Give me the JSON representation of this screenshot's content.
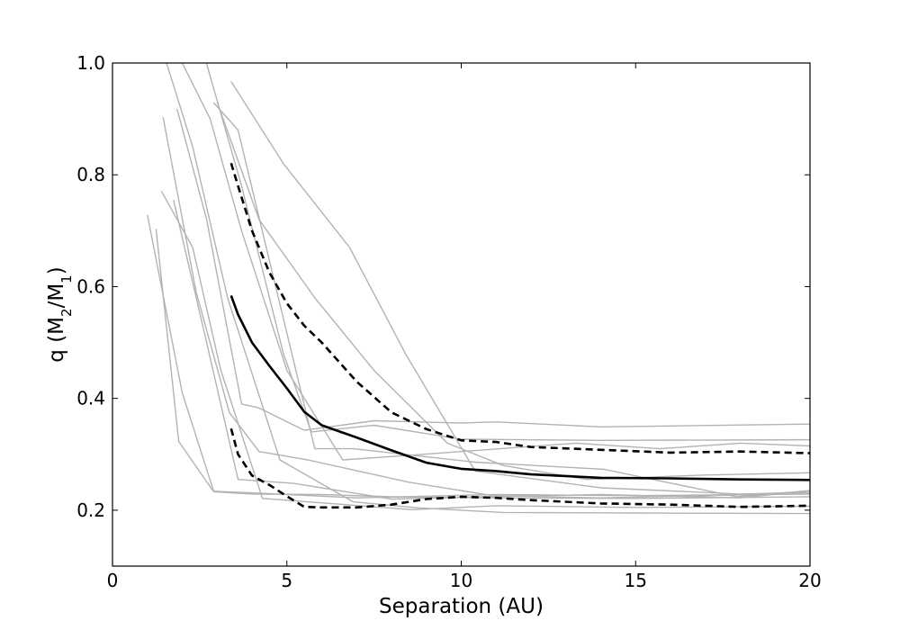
{
  "chart_data": {
    "type": "line",
    "title": "",
    "xlabel": "Separation (AU)",
    "ylabel": "q (M2/M1)",
    "ylabel_parts": {
      "prefix": "q (M",
      "sub1": "2",
      "mid": "/M",
      "sub2": "1",
      "suffix": ")"
    },
    "xlim": [
      0,
      20
    ],
    "ylim": [
      0.1,
      1.0
    ],
    "xticks": [
      0,
      5,
      10,
      15,
      20
    ],
    "xtick_labels": [
      "0",
      "5",
      "10",
      "15",
      "20"
    ],
    "yticks": [
      0.2,
      0.4,
      0.6,
      0.8,
      1.0
    ],
    "ytick_labels": [
      "0.2",
      "0.4",
      "0.6",
      "0.8",
      "1.0"
    ],
    "grid": false,
    "legend": "none",
    "colors": {
      "individual": "#b3b3b3",
      "median": "#000000",
      "bounds": "#000000"
    },
    "series": [
      {
        "style": "gray",
        "x": [
          1.0,
          2.0,
          2.9,
          4.4,
          7.0,
          11.0,
          15.0,
          20.0
        ],
        "y": [
          0.728,
          0.41,
          0.234,
          0.23,
          0.222,
          0.228,
          0.226,
          0.229
        ]
      },
      {
        "style": "gray",
        "x": [
          1.25,
          1.9,
          2.9,
          4.0,
          6.0,
          8.0,
          11.0,
          15.0,
          20.0
        ],
        "y": [
          0.703,
          0.323,
          0.233,
          0.229,
          0.228,
          0.224,
          0.222,
          0.221,
          0.224
        ]
      },
      {
        "style": "gray",
        "x": [
          1.4,
          2.3,
          3.1,
          4.3,
          8.6,
          11.0,
          15.0,
          20.0
        ],
        "y": [
          0.771,
          0.67,
          0.452,
          0.221,
          0.201,
          0.208,
          0.205,
          0.207
        ]
      },
      {
        "style": "gray",
        "x": [
          1.45,
          2.4,
          3.35,
          4.2,
          5.6,
          8.5,
          10.9,
          14.0,
          20.0
        ],
        "y": [
          0.903,
          0.59,
          0.375,
          0.305,
          0.29,
          0.25,
          0.226,
          0.222,
          0.23
        ]
      },
      {
        "style": "gray",
        "x": [
          1.75,
          2.7,
          3.6,
          5.2,
          8.0,
          10.6,
          14.0,
          18.0,
          20.0
        ],
        "y": [
          0.755,
          0.5,
          0.255,
          0.248,
          0.22,
          0.224,
          0.228,
          0.222,
          0.235
        ]
      },
      {
        "style": "gray",
        "x": [
          1.85,
          2.7,
          3.7,
          4.2,
          5.5,
          7.5,
          10.0,
          11.0,
          14.0,
          20.0
        ],
        "y": [
          0.918,
          0.72,
          0.39,
          0.383,
          0.343,
          0.36,
          0.356,
          0.358,
          0.349,
          0.354
        ]
      },
      {
        "style": "gray",
        "x": [
          1.45,
          2.3,
          3.3,
          4.8,
          6.9,
          8.8,
          11.2,
          15.0,
          20.0
        ],
        "y": [
          1.02,
          0.85,
          0.58,
          0.29,
          0.215,
          0.204,
          0.196,
          0.195,
          0.194
        ]
      },
      {
        "style": "gray",
        "x": [
          2.0,
          2.8,
          3.7,
          5.0,
          6.6,
          8.9,
          13.3,
          15.7,
          18.0,
          20.0
        ],
        "y": [
          1.0,
          0.9,
          0.7,
          0.45,
          0.29,
          0.3,
          0.32,
          0.31,
          0.32,
          0.315
        ]
      },
      {
        "style": "gray",
        "x": [
          2.6,
          3.7,
          4.9,
          5.7,
          7.5,
          10.0,
          14.0,
          20.0
        ],
        "y": [
          1.02,
          0.78,
          0.48,
          0.34,
          0.352,
          0.327,
          0.325,
          0.326
        ]
      },
      {
        "style": "gray",
        "x": [
          2.9,
          3.6,
          4.6,
          5.8,
          6.9,
          10.4,
          14.1,
          17.9,
          20.0
        ],
        "y": [
          0.929,
          0.88,
          0.62,
          0.31,
          0.31,
          0.286,
          0.273,
          0.224,
          0.235
        ]
      },
      {
        "style": "gray",
        "x": [
          3.4,
          4.9,
          6.8,
          8.4,
          10.4,
          14.0,
          18.0,
          20.0
        ],
        "y": [
          0.967,
          0.82,
          0.67,
          0.48,
          0.27,
          0.24,
          0.229,
          0.232
        ]
      },
      {
        "style": "gray",
        "x": [
          3.0,
          4.2,
          5.8,
          7.5,
          9.6,
          11.2,
          13.6,
          17.0,
          20.0
        ],
        "y": [
          0.93,
          0.72,
          0.58,
          0.45,
          0.32,
          0.28,
          0.255,
          0.263,
          0.267
        ]
      },
      {
        "style": "median",
        "x": [
          3.4,
          3.6,
          4.0,
          4.5,
          5.0,
          5.5,
          6.0,
          7.0,
          8.0,
          9.0,
          10.0,
          11.0,
          12.0,
          14.0,
          16.0,
          18.0,
          20.0
        ],
        "y": [
          0.584,
          0.55,
          0.5,
          0.458,
          0.418,
          0.376,
          0.352,
          0.33,
          0.307,
          0.285,
          0.274,
          0.27,
          0.264,
          0.258,
          0.257,
          0.255,
          0.254
        ]
      },
      {
        "style": "upper",
        "x": [
          3.4,
          3.6,
          4.0,
          4.5,
          5.0,
          5.5,
          6.0,
          7.0,
          8.0,
          9.0,
          10.0,
          11.0,
          12.0,
          14.0,
          16.0,
          18.0,
          20.0
        ],
        "y": [
          0.821,
          0.78,
          0.7,
          0.625,
          0.57,
          0.53,
          0.5,
          0.43,
          0.375,
          0.345,
          0.325,
          0.322,
          0.313,
          0.308,
          0.303,
          0.305,
          0.302
        ]
      },
      {
        "style": "lower",
        "x": [
          3.4,
          3.6,
          4.0,
          4.5,
          5.0,
          5.5,
          6.0,
          7.0,
          8.0,
          9.0,
          10.0,
          11.0,
          12.0,
          14.0,
          16.0,
          18.0,
          20.0
        ],
        "y": [
          0.346,
          0.3,
          0.262,
          0.245,
          0.225,
          0.206,
          0.205,
          0.205,
          0.21,
          0.22,
          0.224,
          0.222,
          0.218,
          0.212,
          0.21,
          0.206,
          0.208
        ]
      }
    ]
  }
}
